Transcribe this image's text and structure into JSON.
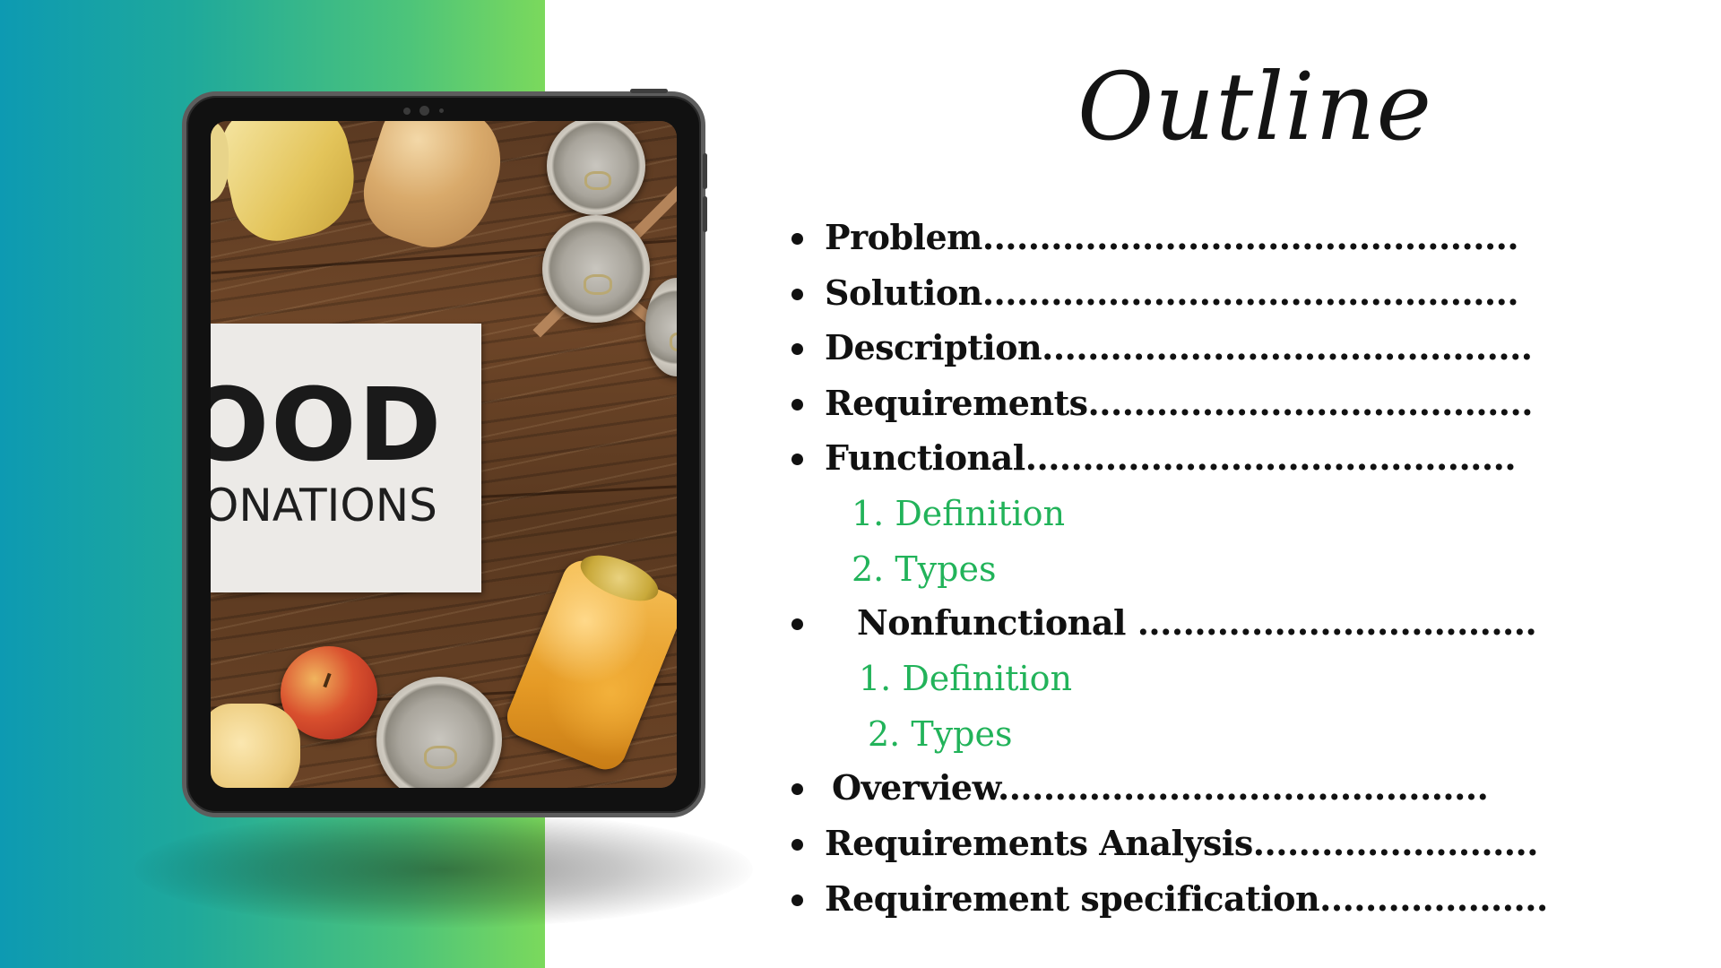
{
  "slide": {
    "title": "Outline",
    "tablet_sign": {
      "line1": "OOD",
      "line2": "ONATIONS"
    },
    "outline_items": [
      {
        "label": "Problem",
        "leader": "..............................................."
      },
      {
        "label": "Solution",
        "leader": "..............................................."
      },
      {
        "label": "Description",
        "leader": "..........................................."
      },
      {
        "label": "Requirements",
        "leader": "......................................."
      },
      {
        "label": "Functional",
        "leader": "..........................................."
      },
      {
        "label": "Nonfunctional ",
        "leader": "..................................."
      },
      {
        "label": "Overview",
        "leader": "..........................................."
      },
      {
        "label": "Requirements Analysis",
        "leader": "........................."
      },
      {
        "label": "Requirement specification",
        "leader": "...................."
      }
    ],
    "functional_subitems": [
      "1. Definition",
      "2. Types"
    ],
    "nonfunctional_subitems": [
      "1. Definition",
      "2. Types"
    ],
    "colors": {
      "accent_green": "#22b35a",
      "gradient_start": "#0d9ab2",
      "gradient_end": "#7bd95c",
      "text": "#111111"
    }
  }
}
